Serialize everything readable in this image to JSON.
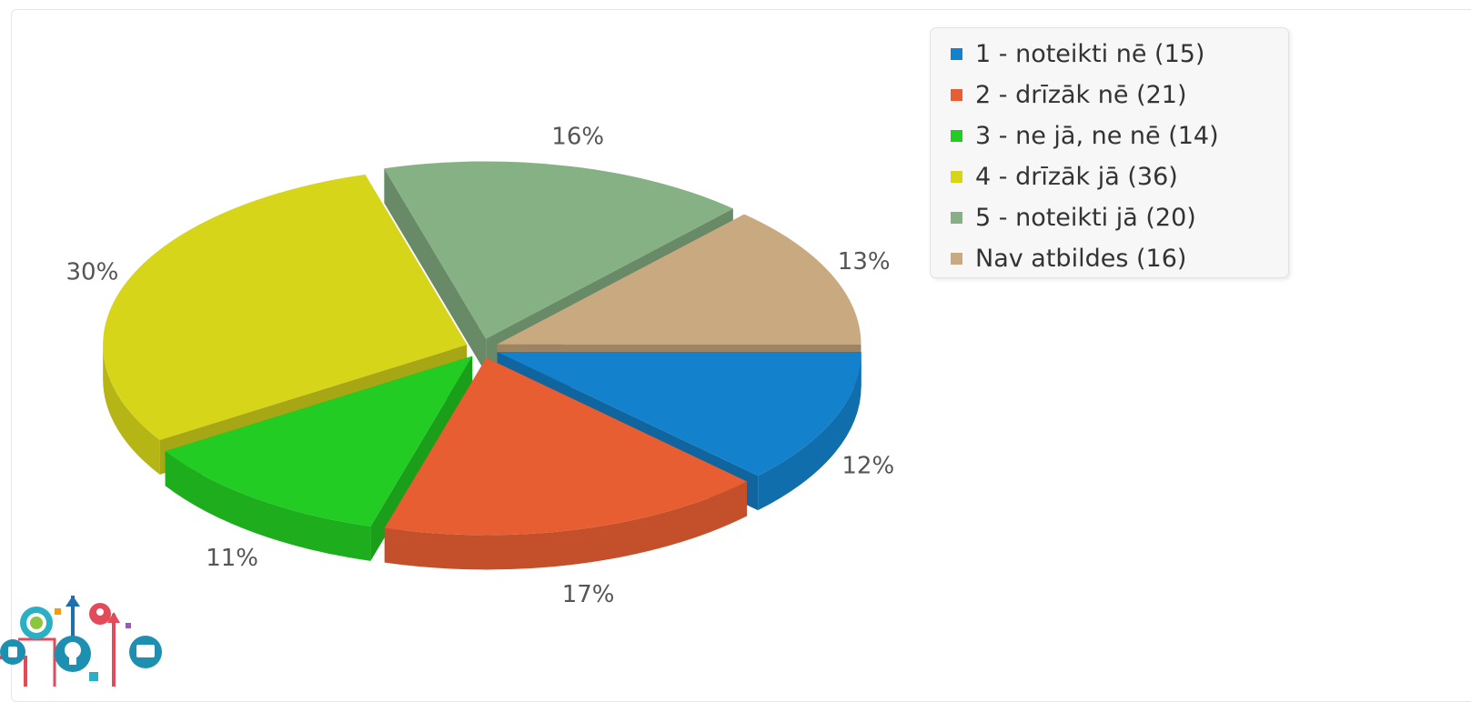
{
  "chart_data": {
    "type": "pie",
    "three_d": true,
    "exploded": true,
    "legend_position": "top-right",
    "slices": [
      {
        "legend": "1 - noteikti nē (15)",
        "value": 15,
        "percent_label": "12%",
        "color": "#1481CC"
      },
      {
        "legend": "2 - drīzāk nē (21)",
        "value": 21,
        "percent_label": "17%",
        "color": "#E65E32"
      },
      {
        "legend": "3 - ne jā, ne nē (14)",
        "value": 14,
        "percent_label": "11%",
        "color": "#22CC22"
      },
      {
        "legend": "4 - drīzāk jā (36)",
        "value": 36,
        "percent_label": "30%",
        "color": "#D6D51A"
      },
      {
        "legend": "5 - noteikti jā (20)",
        "value": 20,
        "percent_label": "16%",
        "color": "#86B184"
      },
      {
        "legend": "Nav atbildes (16)",
        "value": 16,
        "percent_label": "13%",
        "color": "#C9AA80"
      }
    ]
  },
  "logo": {
    "icon": "colorful-education-icons-logo"
  }
}
